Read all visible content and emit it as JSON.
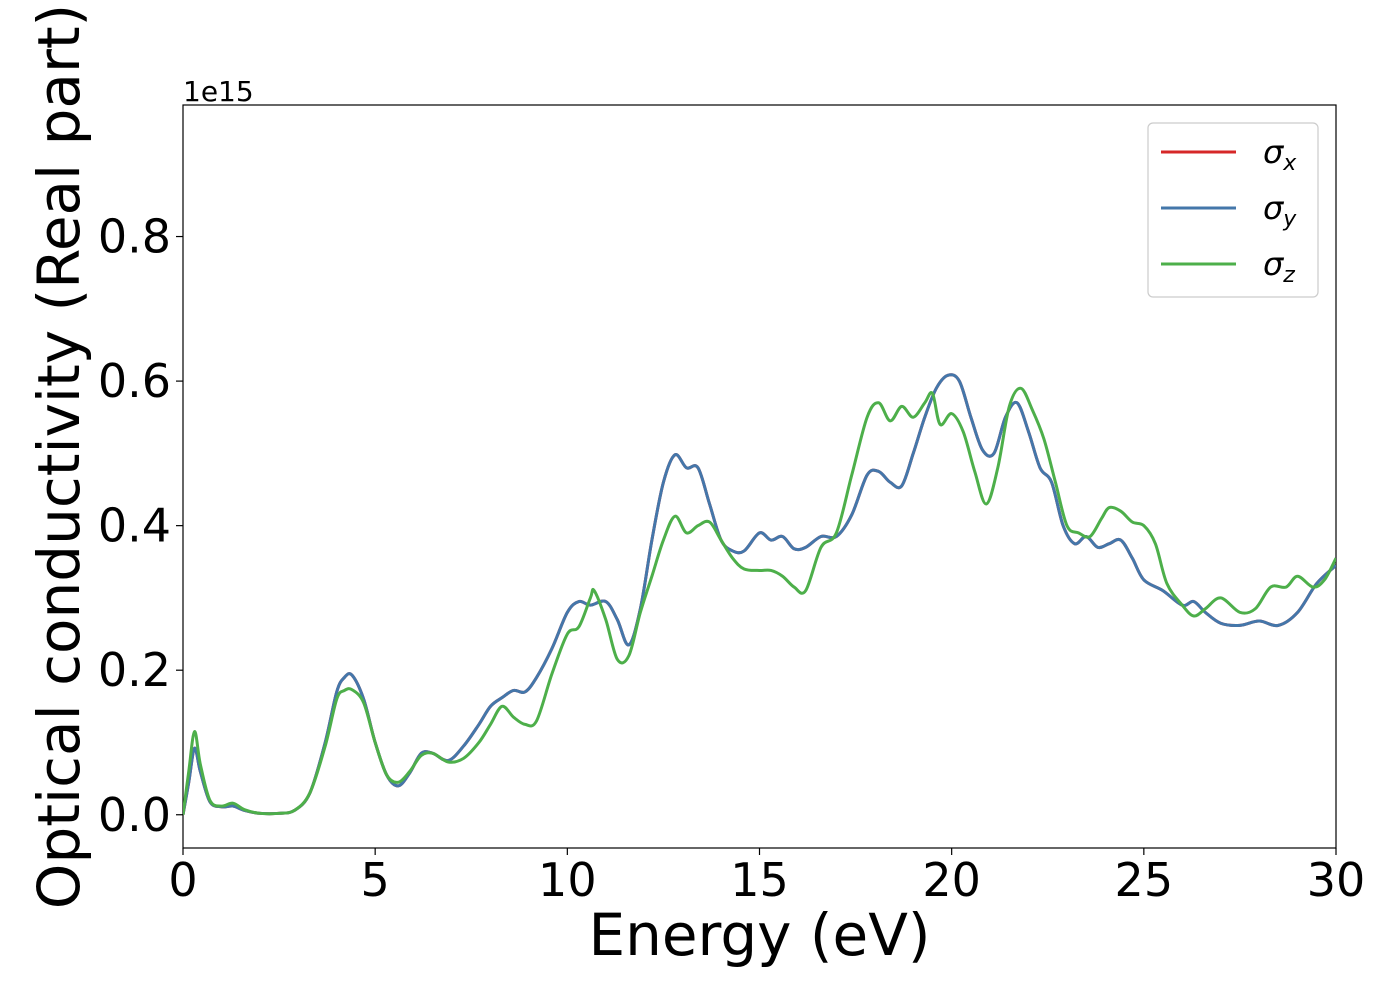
{
  "chart_data": {
    "type": "line",
    "xlabel": "Energy (eV)",
    "ylabel": "Optical conductivity (Real part)",
    "y_offset_text": "1e15",
    "xlim": [
      0,
      30
    ],
    "ylim": [
      -0.046,
      0.982
    ],
    "x_ticks": [
      0,
      5,
      10,
      15,
      20,
      25,
      30
    ],
    "x_tick_labels": [
      "0",
      "5",
      "10",
      "15",
      "20",
      "25",
      "30"
    ],
    "y_ticks": [
      0.0,
      0.2,
      0.4,
      0.6,
      0.8
    ],
    "y_tick_labels": [
      "0.0",
      "0.2",
      "0.4",
      "0.6",
      "0.8"
    ],
    "grid": false,
    "legend_position": "top-right",
    "series": [
      {
        "name": "σx",
        "legend_symbol": "σ",
        "legend_subscript": "x",
        "color": "#d62728",
        "x": [
          0,
          0.15,
          0.3,
          0.45,
          0.7,
          1.0,
          1.3,
          1.6,
          2.0,
          2.5,
          2.9,
          3.3,
          3.7,
          4.0,
          4.2,
          4.4,
          4.7,
          5.0,
          5.3,
          5.6,
          5.9,
          6.2,
          6.5,
          6.9,
          7.3,
          7.7,
          8.0,
          8.3,
          8.6,
          8.9,
          9.2,
          9.6,
          10.0,
          10.3,
          10.6,
          11.0,
          11.3,
          11.6,
          11.9,
          12.2,
          12.5,
          12.8,
          13.1,
          13.4,
          13.7,
          14.0,
          14.3,
          14.6,
          15.0,
          15.3,
          15.6,
          15.9,
          16.2,
          16.6,
          17.0,
          17.4,
          17.8,
          18.1,
          18.4,
          18.7,
          19.0,
          19.3,
          19.6,
          19.9,
          20.2,
          20.5,
          20.8,
          21.1,
          21.4,
          21.7,
          22.0,
          22.3,
          22.6,
          22.9,
          23.2,
          23.5,
          23.8,
          24.1,
          24.4,
          24.7,
          25.0,
          25.5,
          26.0,
          26.3,
          26.6,
          27.0,
          27.5,
          28.0,
          28.5,
          29.0,
          29.5,
          30.0
        ],
        "y": [
          0.0,
          0.045,
          0.092,
          0.06,
          0.018,
          0.011,
          0.012,
          0.006,
          0.002,
          0.002,
          0.006,
          0.03,
          0.1,
          0.17,
          0.19,
          0.193,
          0.16,
          0.1,
          0.055,
          0.04,
          0.058,
          0.085,
          0.085,
          0.075,
          0.095,
          0.125,
          0.15,
          0.162,
          0.172,
          0.17,
          0.19,
          0.23,
          0.28,
          0.295,
          0.29,
          0.295,
          0.27,
          0.235,
          0.285,
          0.38,
          0.46,
          0.498,
          0.48,
          0.48,
          0.43,
          0.38,
          0.365,
          0.365,
          0.39,
          0.38,
          0.385,
          0.368,
          0.37,
          0.385,
          0.385,
          0.415,
          0.47,
          0.475,
          0.46,
          0.455,
          0.5,
          0.55,
          0.59,
          0.608,
          0.6,
          0.55,
          0.505,
          0.5,
          0.55,
          0.57,
          0.53,
          0.48,
          0.46,
          0.4,
          0.375,
          0.385,
          0.37,
          0.375,
          0.38,
          0.355,
          0.325,
          0.31,
          0.29,
          0.295,
          0.28,
          0.265,
          0.262,
          0.268,
          0.262,
          0.28,
          0.32,
          0.345
        ]
      },
      {
        "name": "σy",
        "legend_symbol": "σ",
        "legend_subscript": "y",
        "color": "#4477aa",
        "x": [
          0,
          0.15,
          0.3,
          0.45,
          0.7,
          1.0,
          1.3,
          1.6,
          2.0,
          2.5,
          2.9,
          3.3,
          3.7,
          4.0,
          4.2,
          4.4,
          4.7,
          5.0,
          5.3,
          5.6,
          5.9,
          6.2,
          6.5,
          6.9,
          7.3,
          7.7,
          8.0,
          8.3,
          8.6,
          8.9,
          9.2,
          9.6,
          10.0,
          10.3,
          10.6,
          11.0,
          11.3,
          11.6,
          11.9,
          12.2,
          12.5,
          12.8,
          13.1,
          13.4,
          13.7,
          14.0,
          14.3,
          14.6,
          15.0,
          15.3,
          15.6,
          15.9,
          16.2,
          16.6,
          17.0,
          17.4,
          17.8,
          18.1,
          18.4,
          18.7,
          19.0,
          19.3,
          19.6,
          19.9,
          20.2,
          20.5,
          20.8,
          21.1,
          21.4,
          21.7,
          22.0,
          22.3,
          22.6,
          22.9,
          23.2,
          23.5,
          23.8,
          24.1,
          24.4,
          24.7,
          25.0,
          25.5,
          26.0,
          26.3,
          26.6,
          27.0,
          27.5,
          28.0,
          28.5,
          29.0,
          29.5,
          30.0
        ],
        "y": [
          0.0,
          0.045,
          0.092,
          0.06,
          0.018,
          0.011,
          0.012,
          0.006,
          0.002,
          0.002,
          0.006,
          0.03,
          0.1,
          0.17,
          0.19,
          0.193,
          0.16,
          0.1,
          0.055,
          0.04,
          0.058,
          0.085,
          0.085,
          0.075,
          0.095,
          0.125,
          0.15,
          0.162,
          0.172,
          0.17,
          0.19,
          0.23,
          0.28,
          0.295,
          0.29,
          0.295,
          0.27,
          0.235,
          0.285,
          0.38,
          0.46,
          0.498,
          0.48,
          0.48,
          0.43,
          0.38,
          0.365,
          0.365,
          0.39,
          0.38,
          0.385,
          0.368,
          0.37,
          0.385,
          0.385,
          0.415,
          0.47,
          0.475,
          0.46,
          0.455,
          0.5,
          0.55,
          0.59,
          0.608,
          0.6,
          0.55,
          0.505,
          0.5,
          0.55,
          0.57,
          0.53,
          0.48,
          0.46,
          0.4,
          0.375,
          0.385,
          0.37,
          0.375,
          0.38,
          0.355,
          0.325,
          0.31,
          0.29,
          0.295,
          0.28,
          0.265,
          0.262,
          0.268,
          0.262,
          0.28,
          0.32,
          0.345
        ]
      },
      {
        "name": "σz",
        "legend_symbol": "σ",
        "legend_subscript": "z",
        "color": "#4daf4a",
        "x": [
          0,
          0.15,
          0.3,
          0.45,
          0.7,
          1.0,
          1.3,
          1.6,
          2.0,
          2.5,
          2.9,
          3.3,
          3.7,
          4.0,
          4.2,
          4.4,
          4.7,
          5.0,
          5.3,
          5.6,
          5.9,
          6.2,
          6.5,
          6.9,
          7.3,
          7.7,
          8.0,
          8.3,
          8.6,
          8.9,
          9.2,
          9.6,
          10.0,
          10.3,
          10.6,
          10.7,
          11.0,
          11.3,
          11.6,
          11.9,
          12.2,
          12.5,
          12.8,
          13.1,
          13.4,
          13.7,
          14.0,
          14.3,
          14.6,
          15.0,
          15.3,
          15.6,
          15.9,
          16.2,
          16.6,
          17.0,
          17.4,
          17.8,
          18.1,
          18.4,
          18.7,
          19.0,
          19.3,
          19.5,
          19.7,
          20.0,
          20.3,
          20.6,
          20.9,
          21.2,
          21.5,
          21.8,
          22.1,
          22.4,
          22.7,
          23.0,
          23.3,
          23.6,
          23.9,
          24.1,
          24.4,
          24.7,
          25.0,
          25.3,
          25.6,
          26.0,
          26.3,
          26.6,
          27.0,
          27.5,
          27.9,
          28.3,
          28.7,
          29.0,
          29.4,
          29.7,
          30.0
        ],
        "y": [
          0.0,
          0.06,
          0.115,
          0.07,
          0.02,
          0.012,
          0.016,
          0.007,
          0.002,
          0.002,
          0.006,
          0.03,
          0.095,
          0.16,
          0.172,
          0.173,
          0.155,
          0.1,
          0.055,
          0.045,
          0.06,
          0.082,
          0.085,
          0.073,
          0.078,
          0.1,
          0.125,
          0.15,
          0.135,
          0.125,
          0.13,
          0.195,
          0.25,
          0.26,
          0.3,
          0.31,
          0.27,
          0.215,
          0.22,
          0.28,
          0.33,
          0.38,
          0.413,
          0.39,
          0.4,
          0.405,
          0.38,
          0.355,
          0.34,
          0.338,
          0.338,
          0.33,
          0.315,
          0.31,
          0.37,
          0.39,
          0.47,
          0.55,
          0.57,
          0.545,
          0.565,
          0.55,
          0.57,
          0.583,
          0.54,
          0.555,
          0.53,
          0.475,
          0.43,
          0.48,
          0.565,
          0.59,
          0.56,
          0.52,
          0.46,
          0.4,
          0.39,
          0.385,
          0.41,
          0.425,
          0.42,
          0.405,
          0.4,
          0.375,
          0.32,
          0.29,
          0.275,
          0.285,
          0.3,
          0.28,
          0.285,
          0.315,
          0.315,
          0.33,
          0.315,
          0.325,
          0.355
        ]
      }
    ]
  }
}
